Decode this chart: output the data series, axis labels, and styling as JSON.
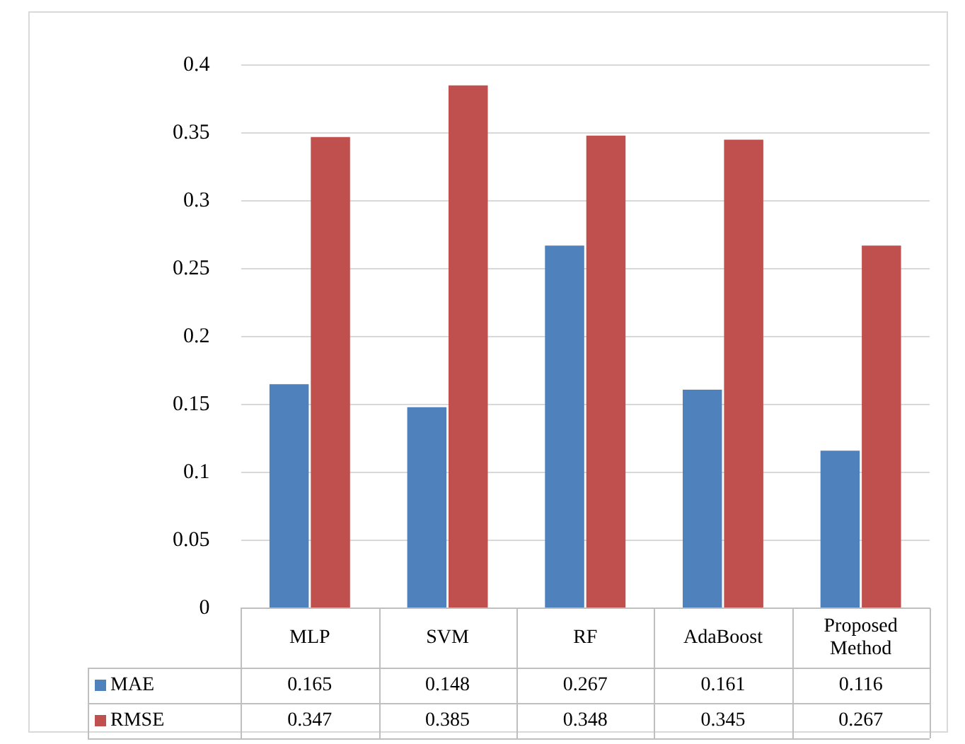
{
  "chart_data": {
    "type": "bar",
    "categories": [
      "MLP",
      "SVM",
      "RF",
      "AdaBoost",
      "Proposed Method"
    ],
    "series": [
      {
        "name": "MAE",
        "color": "#4f81bd",
        "values": [
          0.165,
          0.148,
          0.267,
          0.161,
          0.116
        ]
      },
      {
        "name": "RMSE",
        "color": "#c0504d",
        "values": [
          0.347,
          0.385,
          0.348,
          0.345,
          0.267
        ]
      }
    ],
    "ylim": [
      0,
      0.4
    ],
    "yticks": [
      0,
      0.05,
      0.1,
      0.15,
      0.2,
      0.25,
      0.3,
      0.35,
      0.4
    ],
    "grid": "y",
    "data_labels": true,
    "legend": "bottom"
  }
}
